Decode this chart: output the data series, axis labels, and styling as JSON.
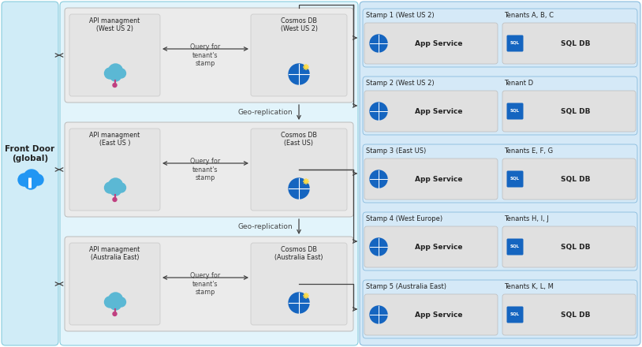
{
  "bg_color": "#ffffff",
  "left_panel_color": "#d0ecf7",
  "middle_panel_color": "#e2f4fb",
  "right_panel_color": "#d5e9f7",
  "region_box_color": "#ebebeb",
  "service_box_color": "#e0e0e0",
  "inner_box_color": "#d8d8d8",
  "front_door_text": "Front Door\n(global)",
  "regions": [
    {
      "api_label": "API managment\n(West US 2)",
      "db_label": "Cosmos DB\n(West US 2)"
    },
    {
      "api_label": "API managment\n(East US )",
      "db_label": "Cosmos DB\n(East US)"
    },
    {
      "api_label": "API managment\n(Australia East)",
      "db_label": "Cosmos DB\n(Australia East)"
    }
  ],
  "stamps": [
    {
      "label": "Stamp 1 (West US 2)",
      "tenants": "Tenants A, B, C"
    },
    {
      "label": "Stamp 2 (West US 2)",
      "tenants": "Tenant D"
    },
    {
      "label": "Stamp 3 (East US)",
      "tenants": "Tenants E, F, G"
    },
    {
      "label": "Stamp 4 (West Europe)",
      "tenants": "Tenants H, I, J"
    },
    {
      "label": "Stamp 5 (Australia East)",
      "tenants": "Tenants K, L, M"
    }
  ],
  "geo_rep_label": "Geo-replication",
  "query_label": "Query for\ntenant's\nstamp",
  "arrow_color": "#444444",
  "text_color": "#222222",
  "label_color": "#444444"
}
